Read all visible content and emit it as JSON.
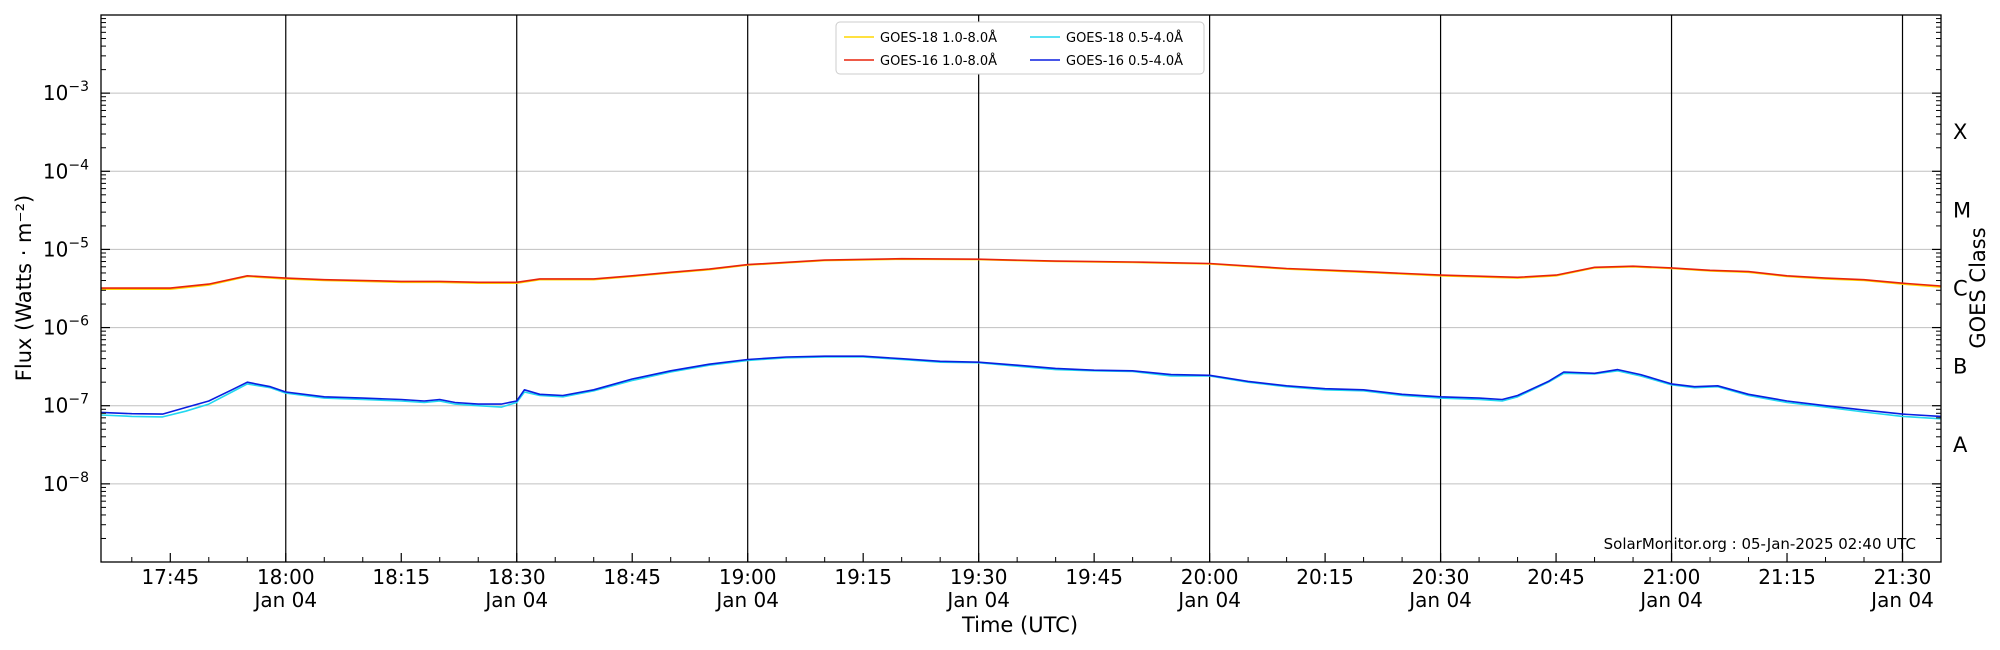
{
  "chart_data": {
    "type": "line",
    "xlabel": "Time (UTC)",
    "ylabel": "Flux (Watts · m⁻²)",
    "y2label": "GOES Class",
    "yscale": "log",
    "ylim": [
      1e-09,
      0.01
    ],
    "xlim": [
      "2025-01-04 17:36",
      "2025-01-04 21:35"
    ],
    "grid": "horizontal at decades, vertical lines at half hours",
    "legend_position": "top-center",
    "x_ticks": [
      {
        "t": "17:45",
        "date": ""
      },
      {
        "t": "18:00",
        "date": "Jan 04"
      },
      {
        "t": "18:15",
        "date": ""
      },
      {
        "t": "18:30",
        "date": "Jan 04"
      },
      {
        "t": "18:45",
        "date": ""
      },
      {
        "t": "19:00",
        "date": "Jan 04"
      },
      {
        "t": "19:15",
        "date": ""
      },
      {
        "t": "19:30",
        "date": "Jan 04"
      },
      {
        "t": "19:45",
        "date": ""
      },
      {
        "t": "20:00",
        "date": "Jan 04"
      },
      {
        "t": "20:15",
        "date": ""
      },
      {
        "t": "20:30",
        "date": "Jan 04"
      },
      {
        "t": "20:45",
        "date": ""
      },
      {
        "t": "21:00",
        "date": "Jan 04"
      },
      {
        "t": "21:15",
        "date": ""
      },
      {
        "t": "21:30",
        "date": "Jan 04"
      }
    ],
    "y_ticks": [
      {
        "v": 1e-08,
        "base": "10",
        "exp": "−8"
      },
      {
        "v": 1e-07,
        "base": "10",
        "exp": "−7"
      },
      {
        "v": 1e-06,
        "base": "10",
        "exp": "−6"
      },
      {
        "v": 1e-05,
        "base": "10",
        "exp": "−5"
      },
      {
        "v": 0.0001,
        "base": "10",
        "exp": "−4"
      },
      {
        "v": 0.001,
        "base": "10",
        "exp": "−3"
      }
    ],
    "goes_classes": [
      {
        "label": "A",
        "v": 3.16e-08
      },
      {
        "label": "B",
        "v": 3.16e-07
      },
      {
        "label": "C",
        "v": 3.16e-06
      },
      {
        "label": "M",
        "v": 3.16e-05
      },
      {
        "label": "X",
        "v": 0.000316
      }
    ],
    "series": [
      {
        "name": "GOES-18 1.0-8.0Å",
        "color": "#ffd700",
        "x": [
          "17:36",
          "17:40",
          "17:45",
          "17:50",
          "17:55",
          "18:00",
          "18:05",
          "18:15",
          "18:20",
          "18:25",
          "18:30",
          "18:33",
          "18:40",
          "18:45",
          "18:50",
          "18:55",
          "19:00",
          "19:10",
          "19:20",
          "19:30",
          "19:40",
          "19:50",
          "20:00",
          "20:10",
          "20:20",
          "20:30",
          "20:40",
          "20:45",
          "20:50",
          "20:55",
          "21:00",
          "21:05",
          "21:10",
          "21:15",
          "21:20",
          "21:25",
          "21:30",
          "21:35"
        ],
        "y": [
          3.1e-06,
          3.1e-06,
          3.1e-06,
          3.5e-06,
          4.5e-06,
          4.2e-06,
          4e-06,
          3.8e-06,
          3.8e-06,
          3.7e-06,
          3.7e-06,
          4.1e-06,
          4.1e-06,
          4.5e-06,
          5e-06,
          5.5e-06,
          6.3e-06,
          7.2e-06,
          7.5e-06,
          7.4e-06,
          7e-06,
          6.8e-06,
          6.5e-06,
          5.6e-06,
          5.1e-06,
          4.6e-06,
          4.3e-06,
          4.6e-06,
          5.8e-06,
          6e-06,
          5.7e-06,
          5.3e-06,
          5.1e-06,
          4.5e-06,
          4.2e-06,
          4e-06,
          3.6e-06,
          3.3e-06
        ]
      },
      {
        "name": "GOES-16 1.0-8.0Å",
        "color": "#e8240c",
        "x": [
          "17:36",
          "17:40",
          "17:45",
          "17:50",
          "17:55",
          "18:00",
          "18:05",
          "18:15",
          "18:20",
          "18:25",
          "18:30",
          "18:33",
          "18:40",
          "18:45",
          "18:50",
          "18:55",
          "19:00",
          "19:10",
          "19:20",
          "19:30",
          "19:40",
          "19:50",
          "20:00",
          "20:10",
          "20:20",
          "20:30",
          "20:40",
          "20:45",
          "20:50",
          "20:55",
          "21:00",
          "21:05",
          "21:10",
          "21:15",
          "21:20",
          "21:25",
          "21:30",
          "21:35"
        ],
        "y": [
          3.2e-06,
          3.2e-06,
          3.2e-06,
          3.6e-06,
          4.6e-06,
          4.3e-06,
          4.1e-06,
          3.9e-06,
          3.9e-06,
          3.8e-06,
          3.8e-06,
          4.2e-06,
          4.2e-06,
          4.6e-06,
          5.1e-06,
          5.6e-06,
          6.4e-06,
          7.3e-06,
          7.6e-06,
          7.5e-06,
          7.1e-06,
          6.9e-06,
          6.6e-06,
          5.7e-06,
          5.2e-06,
          4.7e-06,
          4.4e-06,
          4.7e-06,
          5.9e-06,
          6.1e-06,
          5.8e-06,
          5.4e-06,
          5.2e-06,
          4.6e-06,
          4.3e-06,
          4.1e-06,
          3.7e-06,
          3.4e-06
        ]
      },
      {
        "name": "GOES-18 0.5-4.0Å",
        "color": "#22d8f0",
        "x": [
          "17:36",
          "17:40",
          "17:44",
          "17:47",
          "17:50",
          "17:53",
          "17:55",
          "17:58",
          "18:00",
          "18:05",
          "18:10",
          "18:15",
          "18:18",
          "18:20",
          "18:22",
          "18:25",
          "18:28",
          "18:30",
          "18:31",
          "18:33",
          "18:36",
          "18:40",
          "18:45",
          "18:50",
          "18:55",
          "19:00",
          "19:05",
          "19:10",
          "19:15",
          "19:20",
          "19:25",
          "19:30",
          "19:35",
          "19:40",
          "19:45",
          "19:50",
          "19:55",
          "20:00",
          "20:05",
          "20:10",
          "20:15",
          "20:20",
          "20:25",
          "20:30",
          "20:35",
          "20:38",
          "20:40",
          "20:44",
          "20:46",
          "20:50",
          "20:53",
          "20:56",
          "21:00",
          "21:03",
          "21:06",
          "21:10",
          "21:15",
          "21:20",
          "21:25",
          "21:30",
          "21:35"
        ],
        "y": [
          7.6e-08,
          7.3e-08,
          7.2e-08,
          8.5e-08,
          1.05e-07,
          1.5e-07,
          1.9e-07,
          1.7e-07,
          1.45e-07,
          1.25e-07,
          1.2e-07,
          1.15e-07,
          1.1e-07,
          1.15e-07,
          1.05e-07,
          1e-07,
          9.6e-08,
          1.1e-07,
          1.5e-07,
          1.35e-07,
          1.3e-07,
          1.55e-07,
          2.1e-07,
          2.7e-07,
          3.3e-07,
          3.8e-07,
          4.1e-07,
          4.2e-07,
          4.2e-07,
          3.9e-07,
          3.6e-07,
          3.55e-07,
          3.2e-07,
          2.9e-07,
          2.8e-07,
          2.75e-07,
          2.4e-07,
          2.4e-07,
          2e-07,
          1.75e-07,
          1.6e-07,
          1.55e-07,
          1.35e-07,
          1.25e-07,
          1.2e-07,
          1.15e-07,
          1.3e-07,
          2e-07,
          2.6e-07,
          2.55e-07,
          2.8e-07,
          2.4e-07,
          1.85e-07,
          1.7e-07,
          1.75e-07,
          1.35e-07,
          1.1e-07,
          9.6e-08,
          8.3e-08,
          7.3e-08,
          6.8e-08
        ]
      },
      {
        "name": "GOES-16 0.5-4.0Å",
        "color": "#0a1fe0",
        "x": [
          "17:36",
          "17:40",
          "17:44",
          "17:47",
          "17:50",
          "17:53",
          "17:55",
          "17:58",
          "18:00",
          "18:05",
          "18:10",
          "18:15",
          "18:18",
          "18:20",
          "18:22",
          "18:25",
          "18:28",
          "18:30",
          "18:31",
          "18:33",
          "18:36",
          "18:40",
          "18:45",
          "18:50",
          "18:55",
          "19:00",
          "19:05",
          "19:10",
          "19:15",
          "19:20",
          "19:25",
          "19:30",
          "19:35",
          "19:40",
          "19:45",
          "19:50",
          "19:55",
          "20:00",
          "20:05",
          "20:10",
          "20:15",
          "20:20",
          "20:25",
          "20:30",
          "20:35",
          "20:38",
          "20:40",
          "20:44",
          "20:46",
          "20:50",
          "20:53",
          "20:56",
          "21:00",
          "21:03",
          "21:06",
          "21:10",
          "21:15",
          "21:20",
          "21:25",
          "21:30",
          "21:35"
        ],
        "y": [
          8.2e-08,
          7.9e-08,
          7.8e-08,
          9.5e-08,
          1.15e-07,
          1.6e-07,
          2e-07,
          1.75e-07,
          1.5e-07,
          1.3e-07,
          1.25e-07,
          1.2e-07,
          1.15e-07,
          1.2e-07,
          1.1e-07,
          1.05e-07,
          1.05e-07,
          1.15e-07,
          1.6e-07,
          1.4e-07,
          1.35e-07,
          1.6e-07,
          2.2e-07,
          2.8e-07,
          3.4e-07,
          3.9e-07,
          4.2e-07,
          4.3e-07,
          4.3e-07,
          4e-07,
          3.7e-07,
          3.6e-07,
          3.3e-07,
          3e-07,
          2.85e-07,
          2.8e-07,
          2.5e-07,
          2.45e-07,
          2.05e-07,
          1.8e-07,
          1.65e-07,
          1.6e-07,
          1.4e-07,
          1.3e-07,
          1.25e-07,
          1.2e-07,
          1.35e-07,
          2.05e-07,
          2.7e-07,
          2.6e-07,
          2.9e-07,
          2.5e-07,
          1.9e-07,
          1.75e-07,
          1.8e-07,
          1.4e-07,
          1.15e-07,
          1e-07,
          8.8e-08,
          7.8e-08,
          7.3e-08
        ]
      }
    ],
    "credit": "SolarMonitor.org : 05-Jan-2025 02:40 UTC"
  }
}
